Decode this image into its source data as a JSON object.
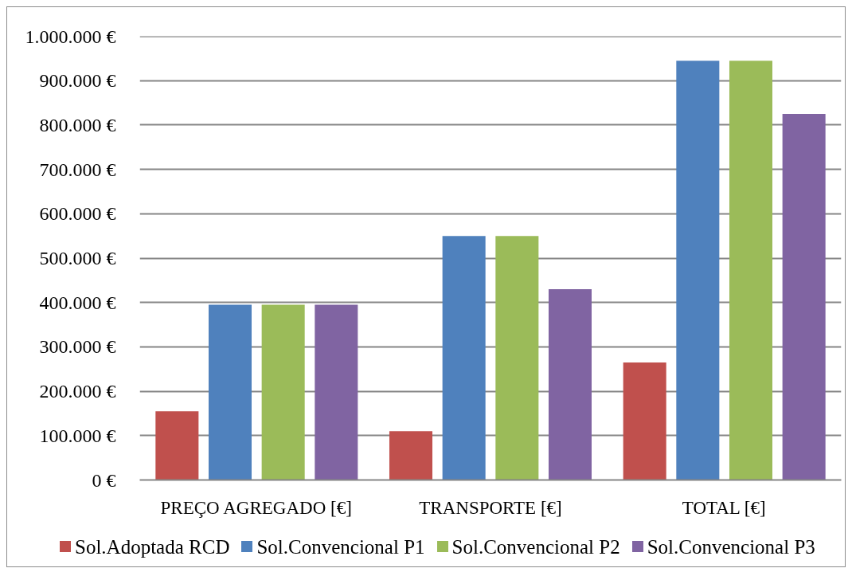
{
  "chart_data": {
    "type": "bar",
    "categories": [
      "PREÇO AGREGADO [€]",
      "TRANSPORTE [€]",
      "TOTAL [€]"
    ],
    "series": [
      {
        "name": "Sol.Adoptada RCD",
        "color": "#c0504d",
        "values": [
          155000,
          110000,
          265000
        ]
      },
      {
        "name": "Sol.Convencional P1",
        "color": "#4f81bd",
        "values": [
          395000,
          550000,
          945000
        ]
      },
      {
        "name": "Sol.Convencional P2",
        "color": "#9bbb59",
        "values": [
          395000,
          550000,
          945000
        ]
      },
      {
        "name": "Sol.Convencional P3",
        "color": "#8064a2",
        "values": [
          395000,
          430000,
          825000
        ]
      }
    ],
    "ylim": [
      0,
      1000000
    ],
    "yticks": [
      {
        "value": 0,
        "label": "0 €"
      },
      {
        "value": 100000,
        "label": "100.000 €"
      },
      {
        "value": 200000,
        "label": "200.000 €"
      },
      {
        "value": 300000,
        "label": "300.000 €"
      },
      {
        "value": 400000,
        "label": "400.000 €"
      },
      {
        "value": 500000,
        "label": "500.000 €"
      },
      {
        "value": 600000,
        "label": "600.000 €"
      },
      {
        "value": 700000,
        "label": "700.000 €"
      },
      {
        "value": 800000,
        "label": "800.000 €"
      },
      {
        "value": 900000,
        "label": "900.000 €"
      },
      {
        "value": 1000000,
        "label": "1.000.000 €"
      }
    ],
    "grid": "y",
    "legend": "bottom"
  }
}
